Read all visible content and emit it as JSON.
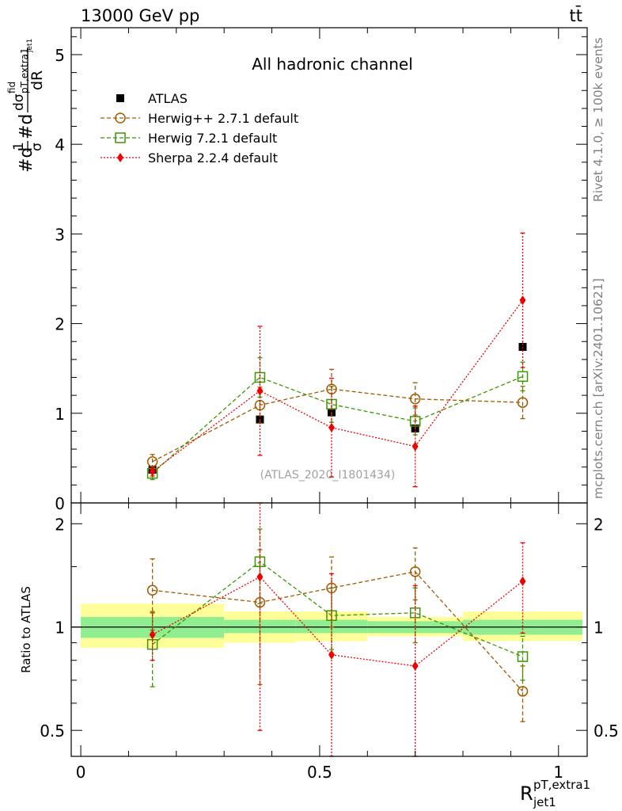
{
  "header": {
    "left": "13000 GeV pp",
    "right": "tt̄"
  },
  "side_labels": {
    "rivet": "Rivet 4.1.0, ≥ 100k events",
    "mcplots": "mcplots.cern.ch [arXiv:2401.10621]"
  },
  "colors": {
    "atlas": "#000000",
    "herwigpp": "#a05a00",
    "herwig7": "#3c9600",
    "sherpa": "#ee0000",
    "band_inner": "#90ee90",
    "band_outer": "#ffff99"
  },
  "chart_data": [
    {
      "type": "scatter",
      "panel": "main",
      "title": "All hadronic channel",
      "watermark": "(ATLAS_2020_I1801434)",
      "ylabel": "#d1/σ#dσ^fid/dR_jet1^pT,extra1",
      "ylabel_parts": {
        "prefix": "#d",
        "frac1_num": "1",
        "frac1_den": "σ",
        "middle": "#d",
        "frac2_num": "dσ",
        "frac2_num_sup": "fid",
        "frac2_num_sub": "pT,extra1",
        "frac2_num_subsub": "jet1",
        "frac2_den": "dR"
      },
      "xlim": [
        -0.02,
        1.06
      ],
      "ylim": [
        0,
        5.3
      ],
      "yticks": [
        0,
        1,
        2,
        3,
        4,
        5
      ],
      "ytick_labels": [
        "0",
        "1",
        "2",
        "3",
        "4",
        "5"
      ],
      "legend_position": "top-left",
      "series": [
        {
          "name": "ATLAS",
          "style": "data",
          "color": "#000000",
          "x": [
            0.15,
            0.375,
            0.525,
            0.7,
            0.925
          ],
          "y": [
            0.37,
            0.93,
            1.01,
            0.83,
            1.74
          ],
          "err": [
            0.03,
            0.05,
            0.05,
            0.04,
            0.05
          ],
          "xerr_lo": [
            0.15,
            0.075,
            0.075,
            0.1,
            0.125
          ],
          "xerr_hi": [
            0.15,
            0.075,
            0.075,
            0.1,
            0.125
          ]
        },
        {
          "name": "Herwig++ 2.7.1 default",
          "style": "circle",
          "line": "dashed",
          "color": "#a05a00",
          "x": [
            0.15,
            0.375,
            0.525,
            0.7,
            0.925
          ],
          "y": [
            0.46,
            1.09,
            1.27,
            1.16,
            1.12
          ],
          "err": [
            0.08,
            0.2,
            0.22,
            0.18,
            0.18
          ]
        },
        {
          "name": "Herwig 7.2.1 default",
          "style": "square",
          "line": "dashed",
          "color": "#3c9600",
          "x": [
            0.15,
            0.375,
            0.525,
            0.7,
            0.925
          ],
          "y": [
            0.33,
            1.4,
            1.1,
            0.91,
            1.41
          ],
          "err": [
            0.07,
            0.22,
            0.2,
            0.15,
            0.16
          ]
        },
        {
          "name": "Sherpa 2.2.4 default",
          "style": "diamond",
          "line": "dotted",
          "color": "#ee0000",
          "x": [
            0.15,
            0.375,
            0.525,
            0.7,
            0.925
          ],
          "y": [
            0.35,
            1.25,
            0.84,
            0.63,
            2.26
          ],
          "err": [
            0.05,
            0.72,
            0.55,
            0.45,
            0.75
          ]
        }
      ]
    },
    {
      "type": "scatter",
      "panel": "ratio",
      "ylabel": "Ratio to ATLAS",
      "xlabel": "R_jet1^pT,extra1",
      "xlabel_parts": {
        "base": "R",
        "sup": "pT,extra1",
        "sub": "jet1"
      },
      "xlim": [
        -0.02,
        1.06
      ],
      "ylim": [
        0.42,
        2.3
      ],
      "yscale": "log",
      "xticks": [
        0,
        0.5,
        1
      ],
      "xtick_labels": [
        "0",
        "0.5",
        "1"
      ],
      "yticks": [
        0.5,
        1,
        2
      ],
      "ytick_labels": [
        "0.5",
        "1",
        "2"
      ],
      "bands": [
        {
          "xlo": 0.0,
          "xhi": 0.3,
          "inner": [
            0.93,
            1.07
          ],
          "outer": [
            0.87,
            1.17
          ]
        },
        {
          "xlo": 0.3,
          "xhi": 0.45,
          "inner": [
            0.96,
            1.05
          ],
          "outer": [
            0.9,
            1.11
          ]
        },
        {
          "xlo": 0.45,
          "xhi": 0.6,
          "inner": [
            0.96,
            1.05
          ],
          "outer": [
            0.91,
            1.11
          ]
        },
        {
          "xlo": 0.6,
          "xhi": 0.8,
          "inner": [
            0.96,
            1.04
          ],
          "outer": [
            0.94,
            1.07
          ]
        },
        {
          "xlo": 0.8,
          "xhi": 1.05,
          "inner": [
            0.95,
            1.05
          ],
          "outer": [
            0.91,
            1.11
          ]
        }
      ],
      "series": [
        {
          "name": "Herwig++ 2.7.1 default",
          "style": "circle",
          "line": "dashed",
          "color": "#a05a00",
          "x": [
            0.15,
            0.375,
            0.525,
            0.7,
            0.925
          ],
          "y": [
            1.28,
            1.18,
            1.3,
            1.45,
            0.65
          ],
          "err": [
            0.3,
            0.5,
            0.3,
            0.25,
            0.12
          ]
        },
        {
          "name": "Herwig 7.2.1 default",
          "style": "square",
          "line": "dashed",
          "color": "#3c9600",
          "x": [
            0.15,
            0.375,
            0.525,
            0.7,
            0.925
          ],
          "y": [
            0.89,
            1.55,
            1.08,
            1.1,
            0.82
          ],
          "err": [
            0.22,
            0.38,
            0.22,
            0.2,
            0.12
          ]
        },
        {
          "name": "Sherpa 2.2.4 default",
          "style": "diamond",
          "line": "dotted",
          "color": "#ee0000",
          "x": [
            0.15,
            0.375,
            0.525,
            0.7,
            0.925
          ],
          "y": [
            0.95,
            1.4,
            0.83,
            0.77,
            1.36
          ],
          "err": [
            0.15,
            0.9,
            0.6,
            0.55,
            0.4
          ]
        }
      ]
    }
  ]
}
